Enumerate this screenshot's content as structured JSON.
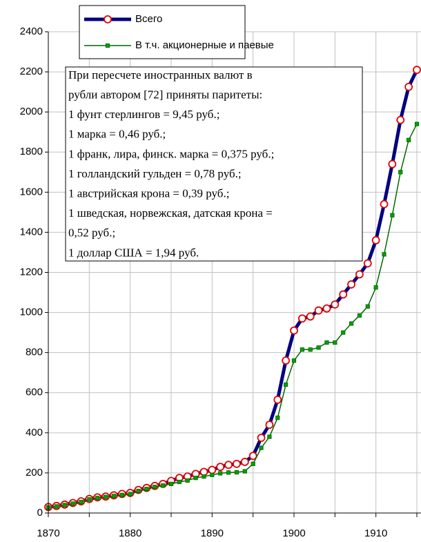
{
  "chart_data": {
    "type": "line",
    "x": [
      1870,
      1871,
      1872,
      1873,
      1874,
      1875,
      1876,
      1877,
      1878,
      1879,
      1880,
      1881,
      1882,
      1883,
      1884,
      1885,
      1886,
      1887,
      1888,
      1889,
      1890,
      1891,
      1892,
      1893,
      1894,
      1895,
      1896,
      1897,
      1898,
      1899,
      1900,
      1901,
      1902,
      1903,
      1904,
      1905,
      1906,
      1907,
      1908,
      1909,
      1910,
      1911,
      1912,
      1913,
      1914,
      1915
    ],
    "series": [
      {
        "name": "Всего",
        "color": "#000080",
        "marker_color": "#e00000",
        "values": [
          30,
          35,
          42,
          50,
          58,
          70,
          78,
          82,
          88,
          95,
          100,
          115,
          125,
          135,
          145,
          160,
          175,
          182,
          195,
          205,
          215,
          230,
          240,
          245,
          255,
          285,
          375,
          440,
          565,
          760,
          910,
          970,
          980,
          1010,
          1020,
          1040,
          1090,
          1140,
          1190,
          1245,
          1360,
          1540,
          1740,
          1960,
          2125,
          2210
        ]
      },
      {
        "name": "В т.ч. акционерные и паевые",
        "color": "#006600",
        "marker_color": "#00a000",
        "values": [
          28,
          33,
          40,
          47,
          55,
          68,
          75,
          80,
          85,
          90,
          95,
          110,
          120,
          130,
          137,
          145,
          155,
          162,
          175,
          182,
          190,
          198,
          202,
          203,
          208,
          245,
          325,
          380,
          475,
          640,
          760,
          815,
          815,
          825,
          850,
          850,
          900,
          945,
          985,
          1030,
          1125,
          1290,
          1485,
          1700,
          1860,
          1940
        ]
      }
    ],
    "annotation": [
      "При пересчете иностранных валют в",
      "рубли автором [72] приняты паритеты:",
      "1 фунт стерлингов = 9,45 руб.;",
      "1 марка = 0,46 руб.;",
      "1 франк, лира, финск. марка = 0,375 руб.;",
      "1 голландский гульден = 0,78 руб.;",
      "1 австрийская крона = 0,39 руб.;",
      "1 шведская, норвежская, датская крона =",
      "0,52 руб.;",
      "1 доллар США = 1,94 руб."
    ],
    "xlim": [
      1870,
      1915
    ],
    "xticks": [
      1870,
      1880,
      1890,
      1900,
      1910
    ],
    "x_minor_grid": [
      1875,
      1885,
      1895,
      1905,
      1915
    ],
    "ylim": [
      0,
      2400
    ],
    "yticks": [
      0,
      200,
      400,
      600,
      800,
      1000,
      1200,
      1400,
      1600,
      1800,
      2000,
      2200,
      2400
    ],
    "grid": true
  }
}
